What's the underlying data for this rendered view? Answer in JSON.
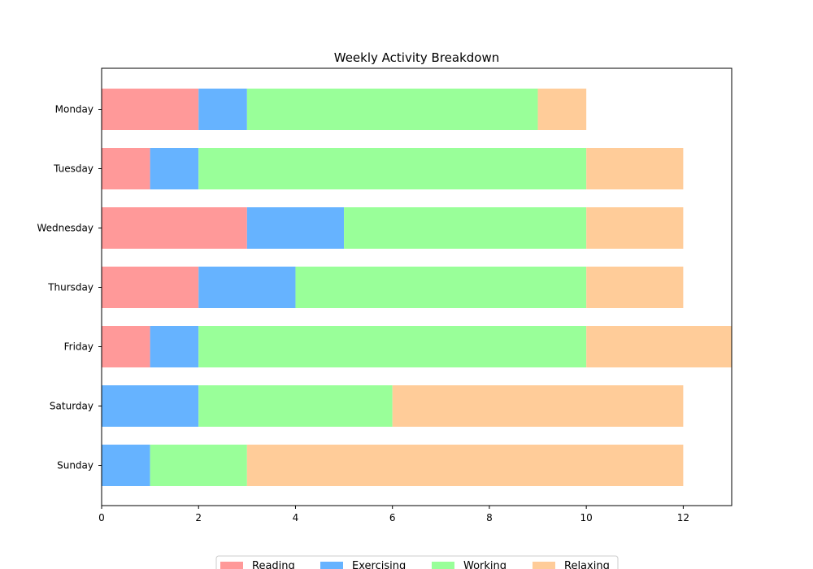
{
  "chart_data": {
    "type": "bar",
    "orientation": "horizontal",
    "stacked": true,
    "title": "Weekly Activity Breakdown",
    "xlabel": "",
    "ylabel": "",
    "categories": [
      "Monday",
      "Tuesday",
      "Wednesday",
      "Thursday",
      "Friday",
      "Saturday",
      "Sunday"
    ],
    "series": [
      {
        "name": "Reading",
        "color": "#ff9999",
        "values": [
          2,
          1,
          3,
          2,
          1,
          0,
          0
        ]
      },
      {
        "name": "Exercising",
        "color": "#66b3ff",
        "values": [
          1,
          1,
          2,
          2,
          1,
          2,
          1
        ]
      },
      {
        "name": "Working",
        "color": "#99ff99",
        "values": [
          6,
          8,
          5,
          6,
          8,
          4,
          2
        ]
      },
      {
        "name": "Relaxing",
        "color": "#ffcc99",
        "values": [
          1,
          2,
          2,
          2,
          3,
          6,
          9
        ]
      }
    ],
    "xlim": [
      0,
      13
    ],
    "xticks": [
      0,
      2,
      4,
      6,
      8,
      10,
      12
    ],
    "grid": false,
    "legend_position": "bottom-center"
  }
}
